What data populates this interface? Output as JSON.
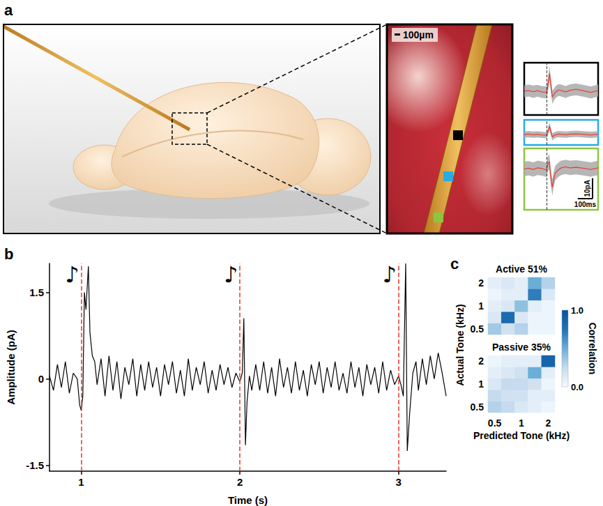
{
  "diagram": {
    "panel": "a",
    "scale_bar": "100µm",
    "sites": [
      {
        "color": "#000000"
      },
      {
        "color": "#29abe2"
      },
      {
        "color": "#8cc63f"
      }
    ]
  },
  "chart_data": [
    {
      "type": "line",
      "x": [
        -150,
        -120,
        -90,
        -60,
        -30,
        0,
        10,
        20,
        30,
        40,
        50,
        60,
        80,
        100,
        130,
        160,
        200,
        250,
        300,
        350
      ],
      "values": [
        0,
        0.3,
        -0.2,
        0.2,
        -0.3,
        -0.5,
        2,
        7.5,
        3,
        -2.5,
        -1.5,
        -0.5,
        0.5,
        0.3,
        -0.3,
        0.4,
        0.8,
        0.2,
        -0.5,
        0.3
      ],
      "sem": [
        2.5,
        2.5,
        2.6,
        2.5,
        2.5,
        2.5,
        2.8,
        3,
        3,
        2.8,
        2.6,
        2.5,
        2.5,
        2.5,
        2.5,
        2.5,
        2.5,
        2.5,
        2.5,
        2.5
      ],
      "color": "#e8433a",
      "xlim": [
        -150,
        350
      ],
      "ylim": [
        -10,
        12
      ],
      "tick_labels": false,
      "onset": 0
    },
    {
      "type": "line",
      "x": [
        -150,
        -120,
        -90,
        -60,
        -30,
        0,
        10,
        20,
        30,
        40,
        50,
        60,
        80,
        100,
        130,
        160,
        200,
        250,
        300,
        350
      ],
      "values": [
        0,
        0.2,
        -0.1,
        0.1,
        -0.2,
        -0.3,
        1,
        4,
        1.5,
        -1.2,
        -0.6,
        -0.2,
        0.2,
        0.1,
        -0.1,
        0.2,
        0.3,
        0.1,
        -0.2,
        0.1
      ],
      "sem": [
        1.5,
        1.5,
        1.5,
        1.5,
        1.5,
        1.5,
        1.6,
        1.8,
        1.8,
        1.7,
        1.6,
        1.5,
        1.5,
        1.5,
        1.5,
        1.5,
        1.5,
        1.5,
        1.5,
        1.5
      ],
      "color": "#e8433a",
      "xlim": [
        -150,
        350
      ],
      "ylim": [
        -5,
        7
      ],
      "tick_labels": false,
      "onset": 0
    },
    {
      "type": "line",
      "x": [
        -150,
        -120,
        -90,
        -60,
        -30,
        0,
        10,
        20,
        30,
        40,
        50,
        60,
        80,
        100,
        130,
        160,
        200,
        250,
        300,
        350
      ],
      "values": [
        0,
        0.3,
        -0.3,
        0.5,
        0.2,
        -0.5,
        2.5,
        3.5,
        -4,
        -9,
        -5,
        -2,
        -0.5,
        0.5,
        1,
        0.5,
        0.8,
        0.3,
        -0.3,
        0.5
      ],
      "sem": [
        3.5,
        3.5,
        3.5,
        3.5,
        3.5,
        3.5,
        3.6,
        3.8,
        4,
        4,
        3.8,
        3.6,
        3.5,
        3.5,
        3.5,
        3.5,
        3.5,
        3.5,
        3.5,
        3.5
      ],
      "color": "#e8433a",
      "xlim": [
        -150,
        350
      ],
      "ylim": [
        -20,
        10
      ],
      "tick_labels": false,
      "onset": 0,
      "scale_bar": {
        "x": 100,
        "x_label": "100ms",
        "y": 10,
        "y_label": "10pA"
      }
    },
    {
      "panel": "b",
      "type": "line",
      "xlabel": "Time (s)",
      "ylabel": "Amplitude (pA)",
      "color": "#000000",
      "grid": false,
      "xlim": [
        0.8,
        3.3
      ],
      "xticks": [
        1,
        2,
        3
      ],
      "ylim": [
        -1.6,
        2
      ],
      "yticks": [
        -1.5,
        0,
        1.5
      ],
      "annotations": [
        {
          "x": 1,
          "text": "♪"
        },
        {
          "x": 2,
          "text": "♪"
        },
        {
          "x": 3,
          "text": "♪"
        }
      ],
      "x": [
        0.8,
        0.825,
        0.85,
        0.875,
        0.9,
        0.925,
        0.95,
        0.975,
        0.99,
        1.0,
        1.01,
        1.02,
        1.03,
        1.045,
        1.055,
        1.07,
        1.085,
        1.1,
        1.125,
        1.15,
        1.175,
        1.2,
        1.225,
        1.25,
        1.275,
        1.3,
        1.325,
        1.35,
        1.375,
        1.4,
        1.425,
        1.45,
        1.475,
        1.5,
        1.525,
        1.55,
        1.575,
        1.6,
        1.625,
        1.65,
        1.675,
        1.7,
        1.725,
        1.75,
        1.775,
        1.8,
        1.825,
        1.85,
        1.875,
        1.9,
        1.925,
        1.95,
        1.975,
        2.0,
        2.015,
        2.025,
        2.035,
        2.045,
        2.06,
        2.075,
        2.1,
        2.125,
        2.15,
        2.175,
        2.2,
        2.225,
        2.25,
        2.275,
        2.3,
        2.325,
        2.35,
        2.375,
        2.4,
        2.425,
        2.45,
        2.475,
        2.5,
        2.525,
        2.55,
        2.575,
        2.6,
        2.625,
        2.65,
        2.675,
        2.7,
        2.725,
        2.75,
        2.775,
        2.8,
        2.825,
        2.85,
        2.875,
        2.9,
        2.925,
        2.95,
        2.975,
        3.0,
        3.015,
        3.03,
        3.045,
        3.055,
        3.07,
        3.09,
        3.11,
        3.125,
        3.15,
        3.175,
        3.2,
        3.225,
        3.25,
        3.275,
        3.3
      ],
      "values": [
        0.05,
        -0.2,
        0.25,
        -0.15,
        0.3,
        -0.25,
        0.1,
        0.0,
        -0.45,
        -0.55,
        -0.3,
        1.5,
        1.2,
        1.95,
        0.8,
        0.4,
        0.3,
        -0.1,
        0.35,
        -0.3,
        0.4,
        -0.2,
        0.3,
        -0.35,
        0.2,
        -0.1,
        0.35,
        -0.3,
        0.25,
        -0.2,
        0.3,
        -0.15,
        0.2,
        -0.3,
        0.25,
        -0.1,
        0.3,
        -0.25,
        0.15,
        -0.3,
        0.35,
        -0.2,
        0.2,
        -0.1,
        0.3,
        -0.25,
        0.15,
        -0.2,
        0.25,
        -0.1,
        0.2,
        -0.15,
        0.1,
        -0.05,
        0.1,
        1.05,
        -1.15,
        -0.4,
        0.05,
        -0.2,
        0.25,
        -0.2,
        0.3,
        -0.25,
        0.2,
        -0.3,
        0.35,
        -0.15,
        0.2,
        -0.25,
        0.3,
        -0.2,
        0.15,
        -0.3,
        0.25,
        -0.1,
        0.3,
        -0.25,
        0.2,
        -0.15,
        0.3,
        -0.2,
        0.1,
        -0.25,
        0.3,
        -0.15,
        0.2,
        -0.3,
        0.25,
        -0.1,
        0.2,
        -0.25,
        0.3,
        -0.2,
        0.15,
        -0.1,
        0.05,
        -0.1,
        -0.3,
        2.0,
        -1.25,
        -0.6,
        0.1,
        0.3,
        -0.2,
        0.35,
        -0.1,
        0.4,
        0.0,
        0.45,
        0.1,
        -0.3
      ]
    },
    {
      "panel": "c",
      "type": "heatmap",
      "title": "Active 51%",
      "ylabel": "Actual Tone (kHz)",
      "x": [
        "0.5",
        null,
        "1",
        null,
        "2"
      ],
      "y": [
        "0.5",
        null,
        "1",
        null,
        "2"
      ],
      "tick_labels": "y",
      "cells": [
        [
          0.35,
          0.2,
          0.3,
          0.05,
          0.05
        ],
        [
          0.15,
          0.8,
          0.15,
          0.05,
          0.05
        ],
        [
          0.1,
          0.15,
          0.4,
          0.1,
          0.05
        ],
        [
          0.05,
          0.1,
          0.1,
          0.7,
          0.15
        ],
        [
          0.1,
          0.15,
          0.1,
          0.5,
          0.3
        ]
      ],
      "colorbar": {
        "label": "Correlation",
        "range": [
          0,
          1
        ],
        "ticks": [
          {
            "value": 1,
            "label": "1.0"
          },
          {
            "value": 0,
            "label": "0.0"
          }
        ]
      }
    },
    {
      "type": "heatmap",
      "title": "Passive 35%",
      "xlabel": "Predicted Tone (kHz)",
      "x": [
        "0.5",
        null,
        "1",
        null,
        "2"
      ],
      "y": [
        "0.5",
        null,
        "1",
        null,
        "2"
      ],
      "cells": [
        [
          0.3,
          0.25,
          0.15,
          0.1,
          0.05
        ],
        [
          0.25,
          0.2,
          0.2,
          0.1,
          0.1
        ],
        [
          0.15,
          0.25,
          0.25,
          0.2,
          0.05
        ],
        [
          0.1,
          0.15,
          0.2,
          0.5,
          0.1
        ],
        [
          0.05,
          0.1,
          0.1,
          0.1,
          0.85
        ]
      ]
    }
  ]
}
